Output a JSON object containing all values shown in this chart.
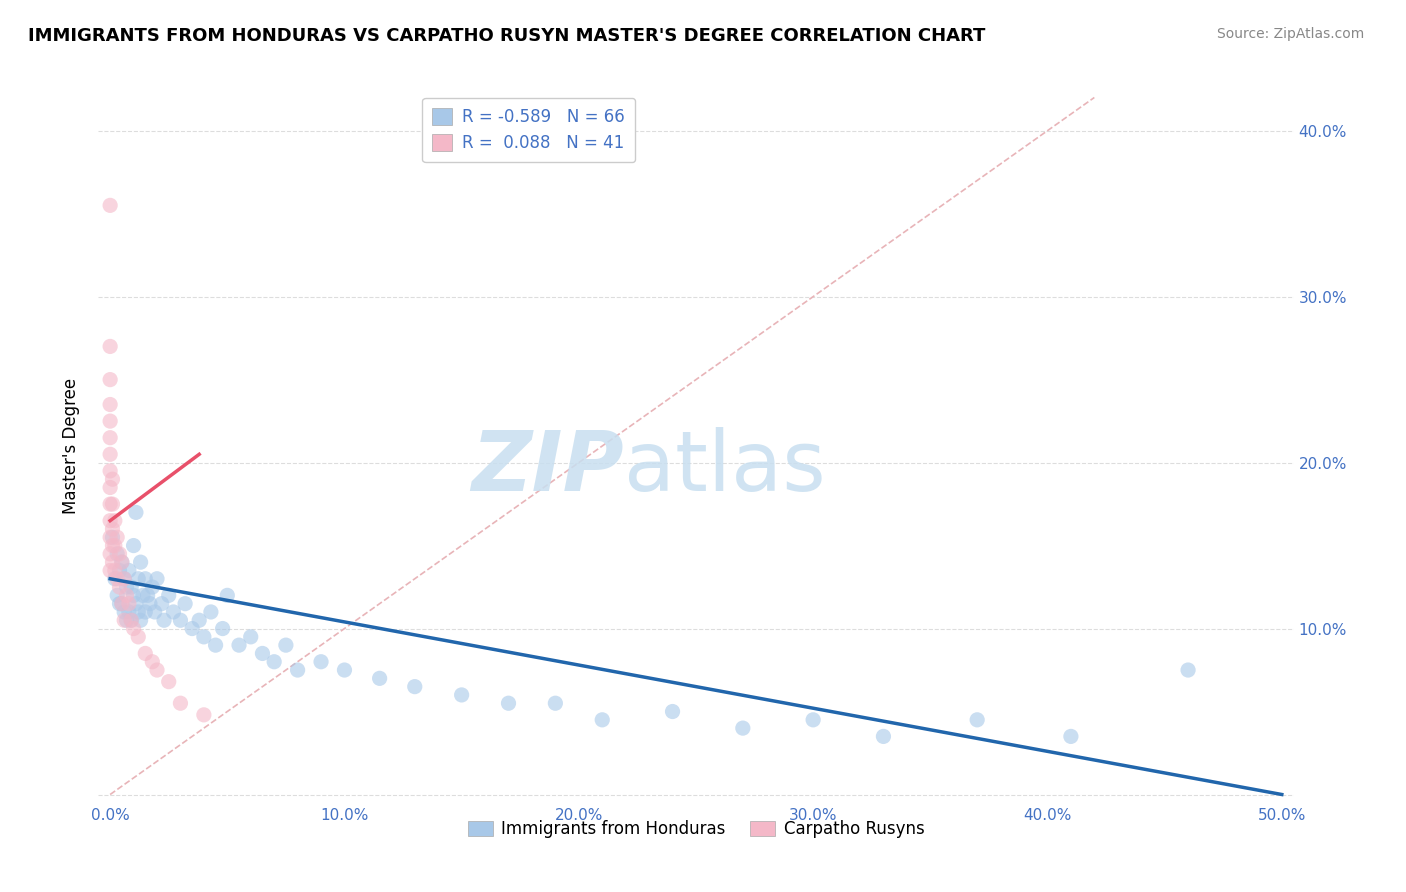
{
  "title": "IMMIGRANTS FROM HONDURAS VS CARPATHO RUSYN MASTER'S DEGREE CORRELATION CHART",
  "source": "Source: ZipAtlas.com",
  "ylabel": "Master's Degree",
  "xlim": [
    -0.005,
    0.505
  ],
  "ylim": [
    -0.005,
    0.425
  ],
  "xticks": [
    0.0,
    0.1,
    0.2,
    0.3,
    0.4,
    0.5
  ],
  "yticks": [
    0.0,
    0.1,
    0.2,
    0.3,
    0.4
  ],
  "xticklabels": [
    "0.0%",
    "10.0%",
    "20.0%",
    "30.0%",
    "40.0%",
    "50.0%"
  ],
  "yticklabels": [
    "",
    "10.0%",
    "20.0%",
    "30.0%",
    "40.0%"
  ],
  "legend_label1": "Immigrants from Honduras",
  "legend_label2": "Carpatho Rusyns",
  "R1": -0.589,
  "N1": 66,
  "R2": 0.088,
  "N2": 41,
  "blue_color": "#a8c8e8",
  "pink_color": "#f4b8c8",
  "blue_line_color": "#2166ac",
  "pink_line_color": "#e8506a",
  "diag_color": "#e8b4b8",
  "tick_color": "#4472c4",
  "blue_scatter_x": [
    0.001,
    0.002,
    0.003,
    0.003,
    0.004,
    0.004,
    0.005,
    0.005,
    0.006,
    0.006,
    0.007,
    0.007,
    0.008,
    0.008,
    0.009,
    0.009,
    0.01,
    0.01,
    0.011,
    0.011,
    0.012,
    0.012,
    0.013,
    0.013,
    0.014,
    0.015,
    0.015,
    0.016,
    0.017,
    0.018,
    0.019,
    0.02,
    0.022,
    0.023,
    0.025,
    0.027,
    0.03,
    0.032,
    0.035,
    0.038,
    0.04,
    0.043,
    0.045,
    0.048,
    0.05,
    0.055,
    0.06,
    0.065,
    0.07,
    0.075,
    0.08,
    0.09,
    0.1,
    0.115,
    0.13,
    0.15,
    0.17,
    0.19,
    0.21,
    0.24,
    0.27,
    0.3,
    0.33,
    0.37,
    0.41,
    0.46
  ],
  "blue_scatter_y": [
    0.155,
    0.13,
    0.145,
    0.12,
    0.135,
    0.115,
    0.14,
    0.115,
    0.13,
    0.11,
    0.125,
    0.105,
    0.135,
    0.11,
    0.125,
    0.105,
    0.15,
    0.12,
    0.17,
    0.115,
    0.13,
    0.11,
    0.14,
    0.105,
    0.12,
    0.13,
    0.11,
    0.12,
    0.115,
    0.125,
    0.11,
    0.13,
    0.115,
    0.105,
    0.12,
    0.11,
    0.105,
    0.115,
    0.1,
    0.105,
    0.095,
    0.11,
    0.09,
    0.1,
    0.12,
    0.09,
    0.095,
    0.085,
    0.08,
    0.09,
    0.075,
    0.08,
    0.075,
    0.07,
    0.065,
    0.06,
    0.055,
    0.055,
    0.045,
    0.05,
    0.04,
    0.045,
    0.035,
    0.045,
    0.035,
    0.075
  ],
  "pink_scatter_x": [
    0.0,
    0.0,
    0.0,
    0.0,
    0.0,
    0.0,
    0.0,
    0.0,
    0.0,
    0.0,
    0.0,
    0.0,
    0.0,
    0.0,
    0.001,
    0.001,
    0.001,
    0.001,
    0.001,
    0.002,
    0.002,
    0.002,
    0.003,
    0.003,
    0.004,
    0.004,
    0.005,
    0.005,
    0.006,
    0.006,
    0.007,
    0.008,
    0.009,
    0.01,
    0.012,
    0.015,
    0.018,
    0.02,
    0.025,
    0.03,
    0.04
  ],
  "pink_scatter_y": [
    0.355,
    0.27,
    0.25,
    0.235,
    0.225,
    0.215,
    0.205,
    0.195,
    0.185,
    0.175,
    0.165,
    0.155,
    0.145,
    0.135,
    0.19,
    0.175,
    0.16,
    0.15,
    0.14,
    0.165,
    0.15,
    0.135,
    0.155,
    0.13,
    0.145,
    0.125,
    0.14,
    0.115,
    0.13,
    0.105,
    0.12,
    0.115,
    0.105,
    0.1,
    0.095,
    0.085,
    0.08,
    0.075,
    0.068,
    0.055,
    0.048
  ],
  "blue_line_x": [
    0.0,
    0.5
  ],
  "blue_line_y": [
    0.13,
    0.0
  ],
  "pink_line_x": [
    0.0,
    0.038
  ],
  "pink_line_y": [
    0.165,
    0.205
  ],
  "diag_line_x": [
    0.0,
    0.42
  ],
  "diag_line_y": [
    0.0,
    0.42
  ]
}
